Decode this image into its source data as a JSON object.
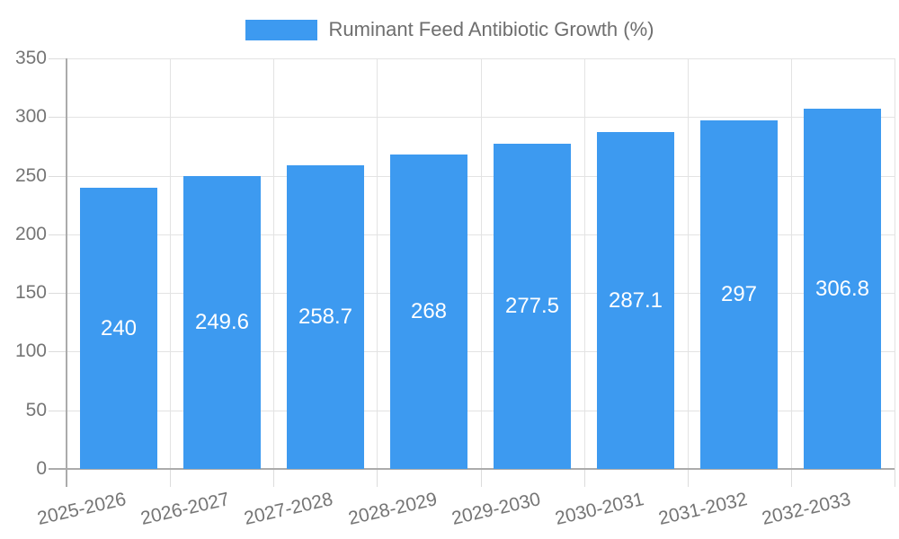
{
  "legend": {
    "label": "Ruminant Feed Antibiotic Growth (%)"
  },
  "chart_data": {
    "type": "bar",
    "title": "Ruminant Feed Antibiotic Growth (%)",
    "categories": [
      "2025-2026",
      "2026-2027",
      "2027-2028",
      "2028-2029",
      "2029-2030",
      "2030-2031",
      "2031-2032",
      "2032-2033"
    ],
    "values": [
      240,
      249.6,
      258.7,
      268,
      277.5,
      287.1,
      297,
      306.8
    ],
    "xlabel": "",
    "ylabel": "",
    "ylim": [
      0,
      350
    ],
    "ytick_step": 50,
    "ytick_labels": [
      "0",
      "50",
      "100",
      "150",
      "200",
      "250",
      "300",
      "350"
    ],
    "grid": "on",
    "legend_position": "top-center",
    "value_labels": "inside-center-white",
    "colors": {
      "bar": "#3d9af0",
      "value_label": "#ffffff",
      "axis": "#ababab",
      "grid": "#e3e3e3",
      "tick": "#dcdcdc",
      "tick_label": "#757575",
      "legend_text": "#6e6e6e",
      "background": "#ffffff"
    }
  }
}
